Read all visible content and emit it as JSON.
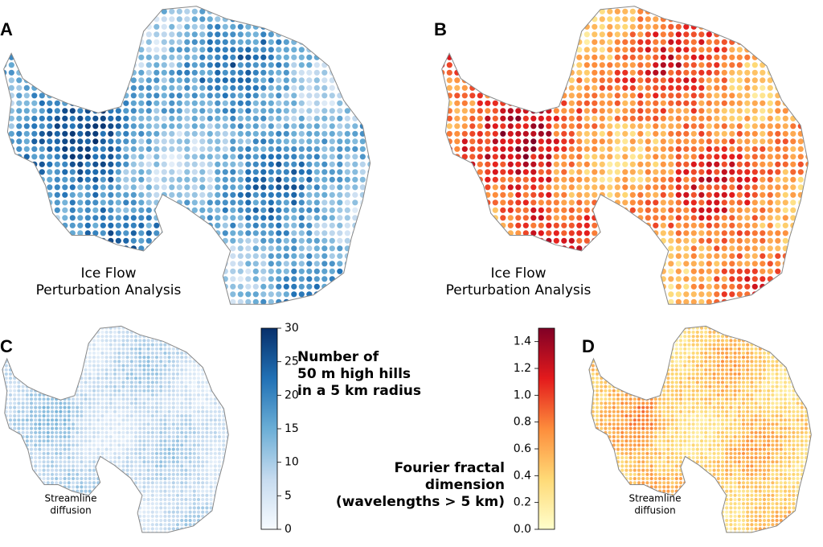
{
  "panels": [
    {
      "label": "A",
      "caption": [
        "Ice Flow",
        "Perturbation Analysis"
      ]
    },
    {
      "label": "B",
      "caption": [
        "Ice Flow",
        "Perturbation Analysis"
      ]
    },
    {
      "label": "C",
      "caption": [
        "Streamline",
        "diffusion"
      ]
    },
    {
      "label": "D",
      "caption": [
        "Streamline",
        "diffusion"
      ]
    }
  ],
  "colorbars": [
    {
      "title": [
        "Number of",
        "50 m high hills",
        "in a 5 km radius"
      ],
      "lim": [
        0,
        30
      ],
      "ticks": [
        0,
        5,
        10,
        15,
        20,
        25,
        30
      ],
      "colors": [
        "#f7fbff",
        "#c6dbef",
        "#6baed6",
        "#2171b5",
        "#08306b"
      ]
    },
    {
      "title": [
        "Fourier fractal",
        "dimension",
        "(wavelengths > 5 km)"
      ],
      "lim": [
        0,
        1.5
      ],
      "ticks": [
        {
          "value": 0,
          "label": "0.0"
        },
        0.2,
        0.4,
        0.6,
        0.8,
        {
          "value": 1,
          "label": "1.0"
        },
        1.2,
        1.4
      ],
      "colors": [
        "#ffffcc",
        "#fed976",
        "#fd8d3c",
        "#e31a1c",
        "#800026"
      ]
    }
  ]
}
